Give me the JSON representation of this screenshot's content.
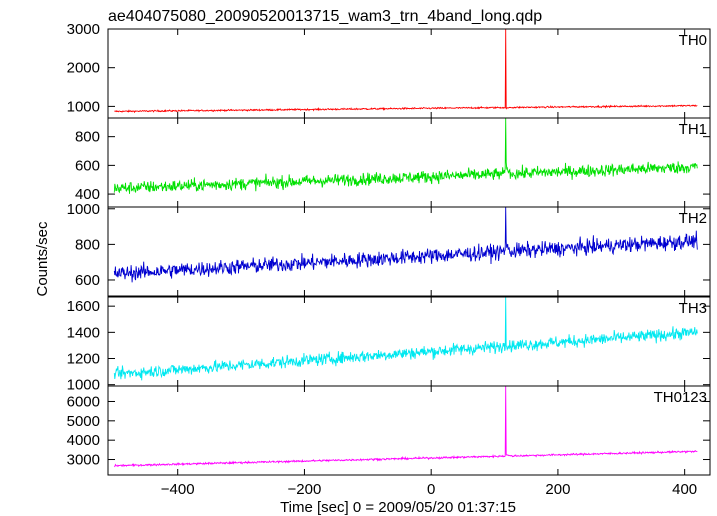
{
  "chart_data": {
    "type": "line",
    "title": "ae404075080_20090520013715_wam3_trn_4band_long.qdp",
    "xlabel": "Time [sec] 0 = 2009/05/20 01:37:15",
    "ylabel": "Counts/sec",
    "xlim": [
      -510,
      440
    ],
    "xticks": [
      -400,
      -200,
      0,
      200,
      400
    ],
    "xtick_labels": [
      "−400",
      "−200",
      "0",
      "200",
      "400"
    ],
    "series": [
      {
        "name": "TH0",
        "color": "#ff0000",
        "ylim": [
          700,
          3000
        ],
        "yticks": [
          1000,
          2000,
          3000
        ],
        "start": 870,
        "end": 1020,
        "noise": 25,
        "peak": 3000,
        "tail": 950,
        "data_start": -500,
        "data_end": 420,
        "peak_time": 117
      },
      {
        "name": "TH1",
        "color": "#00e000",
        "ylim": [
          310,
          930
        ],
        "yticks": [
          400,
          600,
          800
        ],
        "start": 440,
        "end": 590,
        "noise": 55,
        "peak": 930,
        "tail": 600,
        "data_start": -500,
        "data_end": 420,
        "peak_time": 117
      },
      {
        "name": "TH2",
        "color": "#0000d0",
        "ylim": [
          510,
          1010
        ],
        "yticks": [
          600,
          800,
          1000
        ],
        "start": 635,
        "end": 820,
        "noise": 55,
        "peak": 1010,
        "tail": 820,
        "data_start": -500,
        "data_end": 420,
        "peak_time": 117
      },
      {
        "name": "TH3",
        "color": "#00e8f0",
        "ylim": [
          990,
          1670
        ],
        "yticks": [
          1000,
          1200,
          1400,
          1600
        ],
        "start": 1080,
        "end": 1400,
        "noise": 60,
        "peak": 1670,
        "tail": 1320,
        "data_start": -500,
        "data_end": 420,
        "peak_time": 117
      },
      {
        "name": "TH0123",
        "color": "#ff00ff",
        "ylim": [
          2200,
          6800
        ],
        "yticks": [
          3000,
          4000,
          5000,
          6000
        ],
        "start": 2680,
        "end": 3420,
        "noise": 60,
        "peak": 6800,
        "tail": 3300,
        "data_start": -500,
        "data_end": 420,
        "peak_time": 117
      }
    ]
  }
}
